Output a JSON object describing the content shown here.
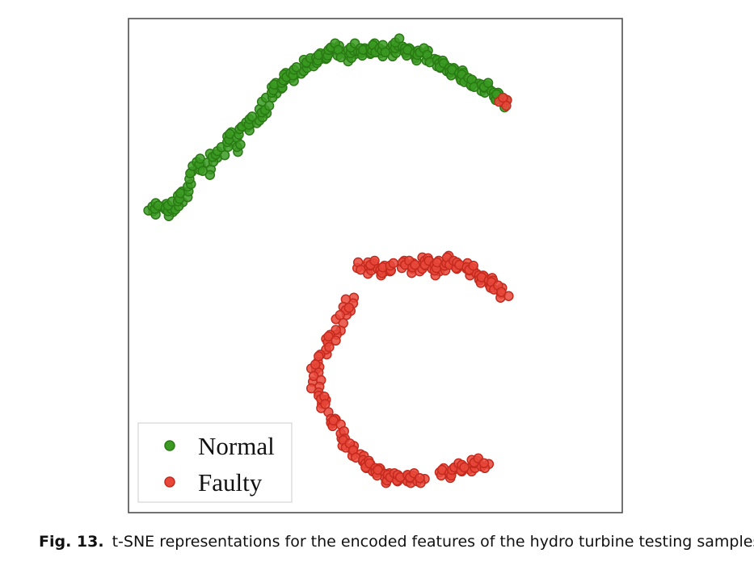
{
  "figure": {
    "label": "Fig. 13.",
    "caption": "t-SNE representations for the encoded features of the hydro turbine testing samples."
  },
  "chart_data": {
    "type": "scatter",
    "title": "",
    "xlabel": "",
    "ylabel": "",
    "xlim": [
      0,
      100
    ],
    "ylim": [
      0,
      100
    ],
    "grid": false,
    "ticks_shown": false,
    "legend_placement": "bottom-left",
    "series": [
      {
        "name": "Normal",
        "color": "#3a9a22",
        "edge_color": "#2a7a14",
        "points": [
          [
            5,
            61
          ],
          [
            6,
            62
          ],
          [
            7,
            62
          ],
          [
            8,
            61
          ],
          [
            9,
            62
          ],
          [
            10,
            63
          ],
          [
            11,
            64
          ],
          [
            12,
            66
          ],
          [
            13,
            68
          ],
          [
            14,
            70
          ],
          [
            15,
            71
          ],
          [
            16,
            69
          ],
          [
            17,
            72
          ],
          [
            19,
            73
          ],
          [
            20,
            75
          ],
          [
            21,
            76
          ],
          [
            22,
            74
          ],
          [
            23,
            77
          ],
          [
            24,
            78
          ],
          [
            25,
            79
          ],
          [
            26,
            80
          ],
          [
            27,
            81
          ],
          [
            28,
            83
          ],
          [
            29,
            85
          ],
          [
            30,
            86
          ],
          [
            31,
            87
          ],
          [
            32,
            88
          ],
          [
            33,
            88
          ],
          [
            34,
            89
          ],
          [
            35,
            90
          ],
          [
            36,
            91
          ],
          [
            37,
            91
          ],
          [
            38,
            92
          ],
          [
            39,
            92
          ],
          [
            40,
            93
          ],
          [
            41,
            93
          ],
          [
            42,
            94
          ],
          [
            43,
            93
          ],
          [
            44,
            92
          ],
          [
            45,
            93
          ],
          [
            46,
            94
          ],
          [
            47,
            94
          ],
          [
            48,
            93
          ],
          [
            49,
            94
          ],
          [
            50,
            94
          ],
          [
            51,
            93
          ],
          [
            52,
            94
          ],
          [
            53,
            93
          ],
          [
            54,
            94
          ],
          [
            55,
            95
          ],
          [
            56,
            94
          ],
          [
            57,
            93
          ],
          [
            58,
            93
          ],
          [
            59,
            92
          ],
          [
            60,
            93
          ],
          [
            61,
            92
          ],
          [
            62,
            91
          ],
          [
            63,
            91
          ],
          [
            64,
            90
          ],
          [
            65,
            90
          ],
          [
            66,
            89
          ],
          [
            67,
            89
          ],
          [
            68,
            88
          ],
          [
            69,
            87
          ],
          [
            70,
            87
          ],
          [
            71,
            86
          ],
          [
            72,
            86
          ],
          [
            73,
            86
          ],
          [
            74,
            85
          ],
          [
            75,
            84
          ],
          [
            76,
            83
          ]
        ]
      },
      {
        "name": "Faulty",
        "color": "#e8483a",
        "edge_color": "#c42a1e",
        "points": [
          [
            76,
            83
          ],
          [
            47,
            50
          ],
          [
            48,
            49
          ],
          [
            49,
            50
          ],
          [
            50,
            50
          ],
          [
            51,
            49
          ],
          [
            52,
            49
          ],
          [
            53,
            50
          ],
          [
            56,
            50
          ],
          [
            57,
            50
          ],
          [
            58,
            49
          ],
          [
            59,
            50
          ],
          [
            60,
            51
          ],
          [
            61,
            50
          ],
          [
            62,
            49
          ],
          [
            63,
            50
          ],
          [
            64,
            50
          ],
          [
            65,
            51
          ],
          [
            66,
            50
          ],
          [
            67,
            50
          ],
          [
            68,
            50
          ],
          [
            69,
            49
          ],
          [
            70,
            49
          ],
          [
            71,
            48
          ],
          [
            72,
            47
          ],
          [
            73,
            47
          ],
          [
            74,
            46
          ],
          [
            75,
            45
          ],
          [
            76,
            44
          ],
          [
            45,
            43
          ],
          [
            44,
            41
          ],
          [
            43,
            39
          ],
          [
            42,
            37
          ],
          [
            41,
            35
          ],
          [
            40,
            33
          ],
          [
            39,
            31
          ],
          [
            38,
            29
          ],
          [
            38,
            27
          ],
          [
            38,
            25
          ],
          [
            39,
            23
          ],
          [
            40,
            21
          ],
          [
            41,
            19
          ],
          [
            42,
            18
          ],
          [
            43,
            16
          ],
          [
            44,
            14
          ],
          [
            45,
            13
          ],
          [
            46,
            12
          ],
          [
            47,
            11
          ],
          [
            48,
            10
          ],
          [
            49,
            9
          ],
          [
            50,
            9
          ],
          [
            51,
            8
          ],
          [
            52,
            7
          ],
          [
            53,
            7
          ],
          [
            54,
            7
          ],
          [
            55,
            7
          ],
          [
            56,
            7
          ],
          [
            57,
            7
          ],
          [
            58,
            7
          ],
          [
            59,
            7
          ],
          [
            64,
            8
          ],
          [
            65,
            8
          ],
          [
            66,
            8
          ],
          [
            67,
            9
          ],
          [
            68,
            9
          ],
          [
            69,
            9
          ],
          [
            70,
            10
          ],
          [
            71,
            10
          ],
          [
            72,
            10
          ]
        ]
      }
    ],
    "legend_labels": [
      "Normal",
      "Faulty"
    ]
  }
}
